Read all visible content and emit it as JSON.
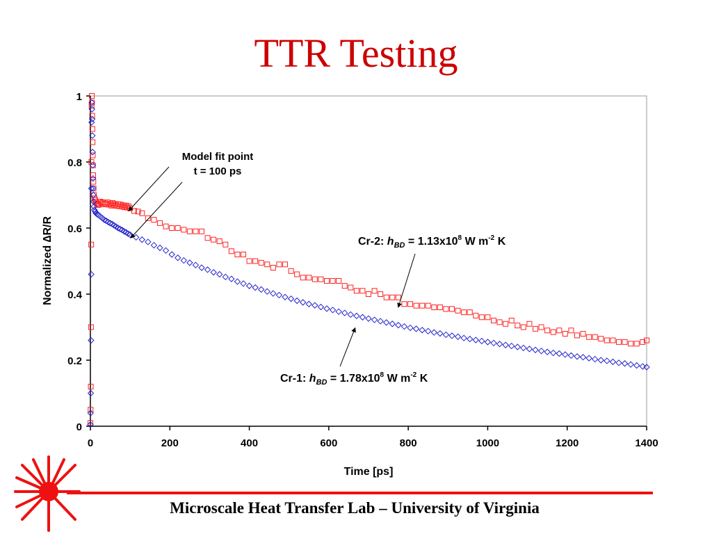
{
  "slide": {
    "title": "TTR Testing",
    "footer": "Microscale Heat Transfer Lab – University of Virginia",
    "accent_color": "#cc0000",
    "logo_icon": "sunburst-logo-icon"
  },
  "chart_data": {
    "type": "scatter",
    "title": "",
    "xlabel": "Time [ps]",
    "ylabel": "Normalized ∆R/R",
    "xlim": [
      0,
      1400
    ],
    "ylim": [
      0,
      1
    ],
    "xticks": [
      0,
      200,
      400,
      600,
      800,
      1000,
      1200,
      1400
    ],
    "yticks": [
      0,
      0.2,
      0.4,
      0.6,
      0.8,
      1
    ],
    "grid": false,
    "series": [
      {
        "name": "",
        "marker": "square",
        "color": "#ff2222",
        "points": [
          [
            0,
            0.01
          ],
          [
            0.5,
            0.05
          ],
          [
            1,
            0.12
          ],
          [
            1.5,
            0.3
          ],
          [
            2,
            0.55
          ],
          [
            2.5,
            0.8
          ],
          [
            3,
            0.97
          ],
          [
            3.5,
            1.0
          ],
          [
            4,
            0.98
          ],
          [
            4.5,
            0.94
          ],
          [
            5,
            0.9
          ],
          [
            5.5,
            0.86
          ],
          [
            6,
            0.82
          ],
          [
            6.5,
            0.79
          ],
          [
            7,
            0.76
          ],
          [
            7.5,
            0.74
          ],
          [
            8,
            0.72
          ],
          [
            9,
            0.7
          ],
          [
            10,
            0.69
          ],
          [
            12,
            0.685
          ],
          [
            14,
            0.68
          ],
          [
            16,
            0.675
          ],
          [
            18,
            0.672
          ],
          [
            20,
            0.67
          ],
          [
            22,
            0.675
          ],
          [
            25,
            0.68
          ],
          [
            28,
            0.675
          ],
          [
            31,
            0.678
          ],
          [
            34,
            0.672
          ],
          [
            37,
            0.675
          ],
          [
            40,
            0.672
          ],
          [
            43,
            0.678
          ],
          [
            46,
            0.671
          ],
          [
            50,
            0.674
          ],
          [
            53,
            0.668
          ],
          [
            56,
            0.676
          ],
          [
            60,
            0.67
          ],
          [
            63,
            0.673
          ],
          [
            66,
            0.667
          ],
          [
            70,
            0.672
          ],
          [
            73,
            0.666
          ],
          [
            76,
            0.671
          ],
          [
            80,
            0.665
          ],
          [
            83,
            0.669
          ],
          [
            86,
            0.663
          ],
          [
            90,
            0.668
          ],
          [
            93,
            0.662
          ],
          [
            96,
            0.666
          ],
          [
            100,
            0.66
          ],
          [
            110,
            0.652
          ],
          [
            120,
            0.65
          ],
          [
            130,
            0.645
          ],
          [
            145,
            0.63
          ],
          [
            160,
            0.625
          ],
          [
            175,
            0.615
          ],
          [
            190,
            0.605
          ],
          [
            205,
            0.6
          ],
          [
            220,
            0.6
          ],
          [
            235,
            0.595
          ],
          [
            250,
            0.59
          ],
          [
            265,
            0.59
          ],
          [
            280,
            0.59
          ],
          [
            295,
            0.57
          ],
          [
            310,
            0.565
          ],
          [
            325,
            0.56
          ],
          [
            340,
            0.55
          ],
          [
            355,
            0.53
          ],
          [
            370,
            0.52
          ],
          [
            385,
            0.52
          ],
          [
            400,
            0.5
          ],
          [
            415,
            0.5
          ],
          [
            430,
            0.495
          ],
          [
            445,
            0.49
          ],
          [
            460,
            0.48
          ],
          [
            475,
            0.49
          ],
          [
            490,
            0.49
          ],
          [
            505,
            0.47
          ],
          [
            520,
            0.46
          ],
          [
            535,
            0.45
          ],
          [
            550,
            0.45
          ],
          [
            565,
            0.445
          ],
          [
            580,
            0.445
          ],
          [
            595,
            0.44
          ],
          [
            610,
            0.44
          ],
          [
            625,
            0.44
          ],
          [
            640,
            0.425
          ],
          [
            655,
            0.42
          ],
          [
            670,
            0.41
          ],
          [
            685,
            0.41
          ],
          [
            700,
            0.4
          ],
          [
            715,
            0.41
          ],
          [
            730,
            0.4
          ],
          [
            745,
            0.39
          ],
          [
            760,
            0.39
          ],
          [
            775,
            0.39
          ],
          [
            790,
            0.37
          ],
          [
            805,
            0.37
          ],
          [
            820,
            0.365
          ],
          [
            835,
            0.365
          ],
          [
            850,
            0.365
          ],
          [
            865,
            0.36
          ],
          [
            880,
            0.36
          ],
          [
            895,
            0.355
          ],
          [
            910,
            0.355
          ],
          [
            925,
            0.35
          ],
          [
            940,
            0.345
          ],
          [
            955,
            0.345
          ],
          [
            970,
            0.335
          ],
          [
            985,
            0.33
          ],
          [
            1000,
            0.33
          ],
          [
            1015,
            0.32
          ],
          [
            1030,
            0.315
          ],
          [
            1045,
            0.31
          ],
          [
            1060,
            0.32
          ],
          [
            1075,
            0.305
          ],
          [
            1090,
            0.3
          ],
          [
            1105,
            0.31
          ],
          [
            1120,
            0.295
          ],
          [
            1135,
            0.3
          ],
          [
            1150,
            0.29
          ],
          [
            1165,
            0.285
          ],
          [
            1180,
            0.29
          ],
          [
            1195,
            0.28
          ],
          [
            1210,
            0.29
          ],
          [
            1225,
            0.275
          ],
          [
            1240,
            0.28
          ],
          [
            1255,
            0.27
          ],
          [
            1270,
            0.27
          ],
          [
            1285,
            0.265
          ],
          [
            1300,
            0.26
          ],
          [
            1315,
            0.26
          ],
          [
            1330,
            0.255
          ],
          [
            1345,
            0.255
          ],
          [
            1360,
            0.25
          ],
          [
            1375,
            0.25
          ],
          [
            1390,
            0.255
          ],
          [
            1400,
            0.26
          ]
        ]
      },
      {
        "name": "",
        "marker": "diamond",
        "color": "#2222cc",
        "points": [
          [
            0,
            0.005
          ],
          [
            0.5,
            0.04
          ],
          [
            1,
            0.1
          ],
          [
            1.5,
            0.26
          ],
          [
            2,
            0.46
          ],
          [
            2.5,
            0.72
          ],
          [
            3,
            0.92
          ],
          [
            3.5,
            0.98
          ],
          [
            4,
            0.96
          ],
          [
            4.5,
            0.93
          ],
          [
            5,
            0.88
          ],
          [
            5.5,
            0.83
          ],
          [
            6,
            0.79
          ],
          [
            6.5,
            0.75
          ],
          [
            7,
            0.72
          ],
          [
            7.5,
            0.7
          ],
          [
            8,
            0.68
          ],
          [
            9,
            0.665
          ],
          [
            10,
            0.655
          ],
          [
            12,
            0.65
          ],
          [
            14,
            0.645
          ],
          [
            17,
            0.642
          ],
          [
            20,
            0.64
          ],
          [
            25,
            0.635
          ],
          [
            30,
            0.63
          ],
          [
            35,
            0.625
          ],
          [
            40,
            0.622
          ],
          [
            45,
            0.618
          ],
          [
            50,
            0.615
          ],
          [
            55,
            0.612
          ],
          [
            60,
            0.608
          ],
          [
            65,
            0.604
          ],
          [
            70,
            0.6
          ],
          [
            75,
            0.597
          ],
          [
            80,
            0.594
          ],
          [
            85,
            0.59
          ],
          [
            90,
            0.587
          ],
          [
            95,
            0.583
          ],
          [
            100,
            0.58
          ],
          [
            115,
            0.572
          ],
          [
            130,
            0.565
          ],
          [
            145,
            0.558
          ],
          [
            160,
            0.548
          ],
          [
            175,
            0.54
          ],
          [
            190,
            0.532
          ],
          [
            205,
            0.52
          ],
          [
            220,
            0.51
          ],
          [
            235,
            0.502
          ],
          [
            250,
            0.495
          ],
          [
            265,
            0.488
          ],
          [
            280,
            0.48
          ],
          [
            295,
            0.474
          ],
          [
            310,
            0.466
          ],
          [
            325,
            0.46
          ],
          [
            340,
            0.452
          ],
          [
            355,
            0.446
          ],
          [
            370,
            0.438
          ],
          [
            385,
            0.432
          ],
          [
            400,
            0.425
          ],
          [
            415,
            0.42
          ],
          [
            430,
            0.414
          ],
          [
            445,
            0.408
          ],
          [
            460,
            0.402
          ],
          [
            475,
            0.397
          ],
          [
            490,
            0.391
          ],
          [
            505,
            0.386
          ],
          [
            520,
            0.38
          ],
          [
            535,
            0.375
          ],
          [
            550,
            0.37
          ],
          [
            565,
            0.366
          ],
          [
            580,
            0.361
          ],
          [
            595,
            0.356
          ],
          [
            610,
            0.352
          ],
          [
            625,
            0.347
          ],
          [
            640,
            0.343
          ],
          [
            655,
            0.338
          ],
          [
            670,
            0.334
          ],
          [
            685,
            0.33
          ],
          [
            700,
            0.326
          ],
          [
            715,
            0.322
          ],
          [
            730,
            0.318
          ],
          [
            745,
            0.314
          ],
          [
            760,
            0.31
          ],
          [
            775,
            0.306
          ],
          [
            790,
            0.302
          ],
          [
            805,
            0.298
          ],
          [
            820,
            0.295
          ],
          [
            835,
            0.291
          ],
          [
            850,
            0.288
          ],
          [
            865,
            0.284
          ],
          [
            880,
            0.281
          ],
          [
            895,
            0.277
          ],
          [
            910,
            0.274
          ],
          [
            925,
            0.271
          ],
          [
            940,
            0.267
          ],
          [
            955,
            0.264
          ],
          [
            970,
            0.261
          ],
          [
            985,
            0.258
          ],
          [
            1000,
            0.255
          ],
          [
            1015,
            0.252
          ],
          [
            1030,
            0.249
          ],
          [
            1045,
            0.246
          ],
          [
            1060,
            0.243
          ],
          [
            1075,
            0.24
          ],
          [
            1090,
            0.237
          ],
          [
            1105,
            0.234
          ],
          [
            1120,
            0.231
          ],
          [
            1135,
            0.228
          ],
          [
            1150,
            0.225
          ],
          [
            1165,
            0.222
          ],
          [
            1180,
            0.22
          ],
          [
            1195,
            0.217
          ],
          [
            1210,
            0.214
          ],
          [
            1225,
            0.211
          ],
          [
            1240,
            0.209
          ],
          [
            1255,
            0.206
          ],
          [
            1270,
            0.203
          ],
          [
            1285,
            0.2
          ],
          [
            1300,
            0.198
          ],
          [
            1315,
            0.195
          ],
          [
            1330,
            0.192
          ],
          [
            1345,
            0.19
          ],
          [
            1360,
            0.187
          ],
          [
            1375,
            0.184
          ],
          [
            1390,
            0.181
          ],
          [
            1400,
            0.179
          ]
        ]
      }
    ],
    "annotations": [
      {
        "id": "model-fit",
        "lines": [
          "Model fit point",
          "t = 100 ps"
        ],
        "arrows_to": [
          [
            110,
            0.66
          ],
          [
            110,
            0.595
          ]
        ]
      },
      {
        "id": "cr2",
        "prefix": "Cr-2:",
        "symbol": "h",
        "subscript": "BD",
        "value": "1.13x10",
        "exp": "8",
        "unit_a": "W m",
        "unit_exp": "-2",
        "unit_b": "K",
        "arrow_to": [
          780,
          0.385
        ]
      },
      {
        "id": "cr1",
        "prefix": "Cr-1:",
        "symbol": "h",
        "subscript": "BD",
        "value": "1.78x10",
        "exp": "8",
        "unit_a": "W m",
        "unit_exp": "-2",
        "unit_b": "K",
        "arrow_to": [
          670,
          0.315
        ]
      }
    ]
  }
}
